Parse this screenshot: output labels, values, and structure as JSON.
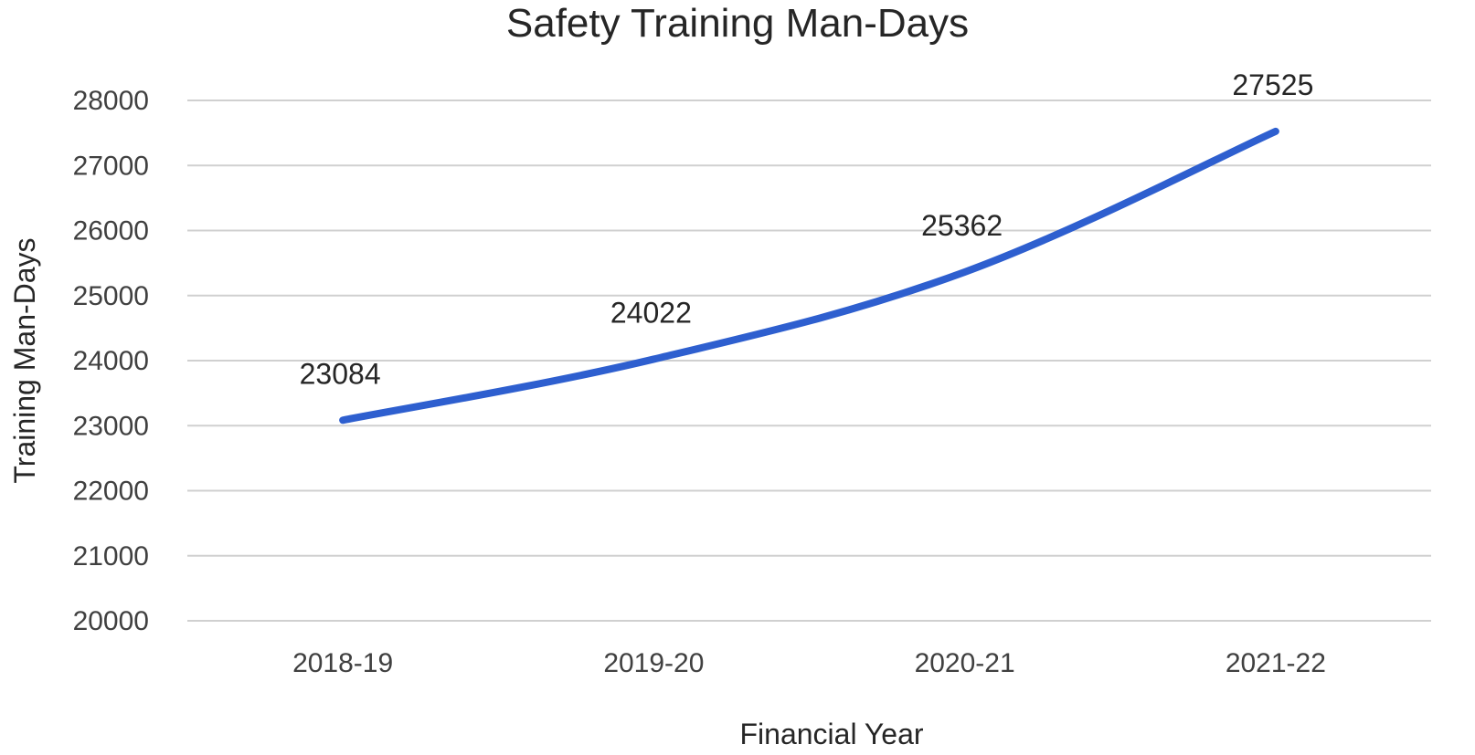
{
  "chart_data": {
    "type": "line",
    "title": "Safety Training Man-Days",
    "xlabel": "Financial Year",
    "ylabel": "Training Man-Days",
    "categories": [
      "2018-19",
      "2019-20",
      "2020-21",
      "2021-22"
    ],
    "series": [
      {
        "values": [
          23084,
          24022,
          25362,
          27525
        ],
        "color": "#2e5fcf"
      }
    ],
    "data_labels": [
      "23084",
      "24022",
      "25362",
      "27525"
    ],
    "ylim": [
      20000,
      28000
    ],
    "yticks": [
      "20000",
      "21000",
      "22000",
      "23000",
      "24000",
      "25000",
      "26000",
      "27000",
      "28000"
    ],
    "grid": true,
    "legend": "none"
  }
}
